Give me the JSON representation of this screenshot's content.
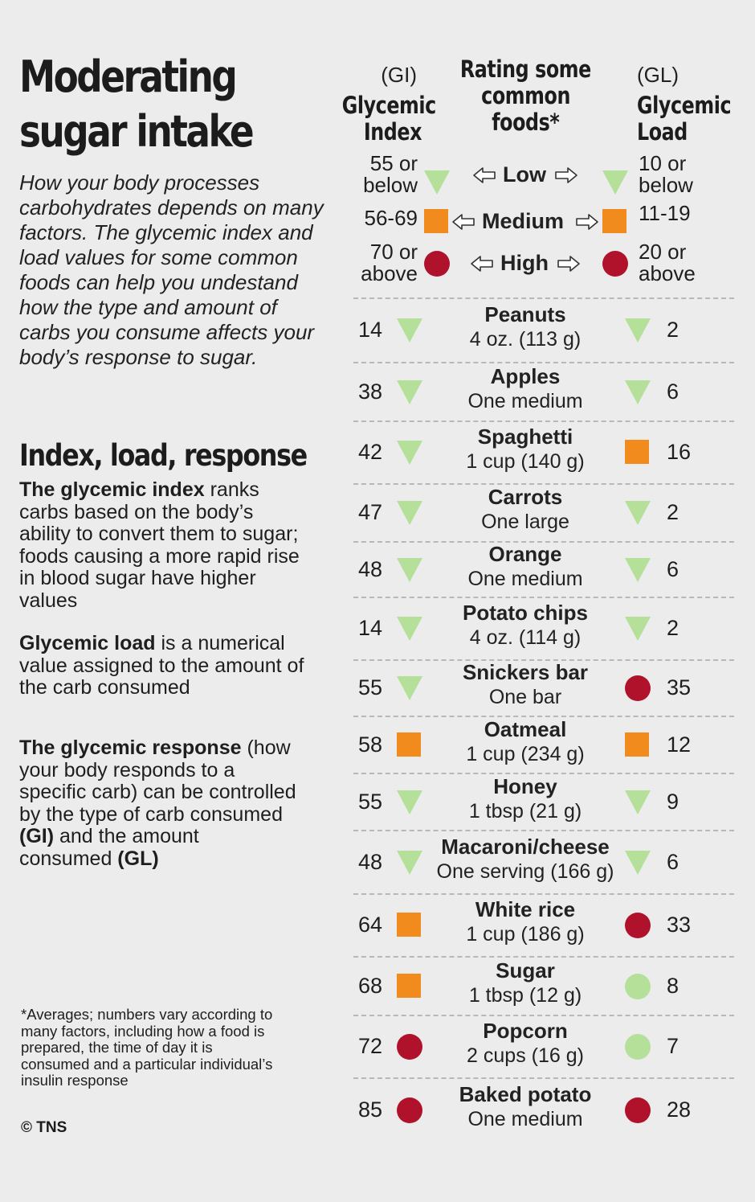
{
  "title_line1": "Moderating",
  "title_line2": "sugar intake",
  "intro": "How your body processes carbohydrates depends on many factors. The glycemic index and load values for some common foods can help you undestand how the type and amount of carbs you consume affects your body’s response to sugar.",
  "subhead": "Index, load, response",
  "definitions": {
    "gi_bold": "The glycemic index",
    "gi_text": " ranks carbs based on the body’s ability to convert them to sugar; foods causing a more rapid rise in blood sugar have higher values",
    "gl_bold": "Glycemic load",
    "gl_text": " is a numerical value assigned to the amount of the carb consumed",
    "gr_bold": "The glycemic response",
    "gr_text1": " (how your body responds to a specific carb) can be controlled by the type of carb consumed ",
    "gr_gi": "(GI)",
    "gr_text2": " and the amount consumed ",
    "gr_gl": "(GL)"
  },
  "footnote": "*Averages; numbers vary according to many factors, including how a food is prepared, the time of day it is consumed and a particular individual’s insulin response",
  "credit": "© TNS",
  "headers": {
    "gi_abbr": "(GI)",
    "gi_line1": "Glycemic",
    "gi_line2": "Index",
    "center_line1": "Rating some",
    "center_line2": "common",
    "center_line3": "foods*",
    "gl_abbr": "(GL)",
    "gl_line1": "Glycemic",
    "gl_line2": "Load"
  },
  "legend": [
    {
      "label": "Low",
      "gi_range": [
        "55 or",
        "below"
      ],
      "gl_range": [
        "10 or",
        "below"
      ],
      "marker": "triangle"
    },
    {
      "label": "Medium",
      "gi_range": [
        "56-69"
      ],
      "gl_range": [
        "11-19"
      ],
      "marker": "square"
    },
    {
      "label": "High",
      "gi_range": [
        "70 or",
        "above"
      ],
      "gl_range": [
        "20 or",
        "above"
      ],
      "marker": "circle"
    }
  ],
  "colors": {
    "low": "#b5e09a",
    "medium": "#f28b1e",
    "high": "#b0122b",
    "divider": "#b8b8b8"
  },
  "chart_data": {
    "type": "table",
    "columns": [
      "Glycemic Index",
      "Rating some common foods*",
      "Glycemic Load"
    ],
    "rows": [
      {
        "food": "Peanuts",
        "serving": "4 oz. (113 g)",
        "gi": 14,
        "gi_rating": "low",
        "gl": 2,
        "gl_rating": "low",
        "gl_marker": "triangle"
      },
      {
        "food": "Apples",
        "serving": "One medium",
        "gi": 38,
        "gi_rating": "low",
        "gl": 6,
        "gl_rating": "low",
        "gl_marker": "triangle"
      },
      {
        "food": "Spaghetti",
        "serving": "1 cup (140 g)",
        "gi": 42,
        "gi_rating": "low",
        "gl": 16,
        "gl_rating": "medium",
        "gl_marker": "square"
      },
      {
        "food": "Carrots",
        "serving": "One large",
        "gi": 47,
        "gi_rating": "low",
        "gl": 2,
        "gl_rating": "low",
        "gl_marker": "triangle"
      },
      {
        "food": "Orange",
        "serving": "One medium",
        "gi": 48,
        "gi_rating": "low",
        "gl": 6,
        "gl_rating": "low",
        "gl_marker": "triangle"
      },
      {
        "food": "Potato chips",
        "serving": "4 oz. (114 g)",
        "gi": 14,
        "gi_rating": "low",
        "gl": 2,
        "gl_rating": "low",
        "gl_marker": "triangle"
      },
      {
        "food": "Snickers bar",
        "serving": "One bar",
        "gi": 55,
        "gi_rating": "low",
        "gl": 35,
        "gl_rating": "high",
        "gl_marker": "circle"
      },
      {
        "food": "Oatmeal",
        "serving": "1 cup (234 g)",
        "gi": 58,
        "gi_rating": "medium",
        "gl": 12,
        "gl_rating": "medium",
        "gl_marker": "square"
      },
      {
        "food": "Honey",
        "serving": "1 tbsp (21 g)",
        "gi": 55,
        "gi_rating": "low",
        "gl": 9,
        "gl_rating": "low",
        "gl_marker": "triangle"
      },
      {
        "food": "Macaroni/cheese",
        "serving": "One serving (166 g)",
        "gi": 48,
        "gi_rating": "low",
        "gl": 6,
        "gl_rating": "low",
        "gl_marker": "triangle"
      },
      {
        "food": "White rice",
        "serving": "1 cup (186 g)",
        "gi": 64,
        "gi_rating": "medium",
        "gl": 33,
        "gl_rating": "high",
        "gl_marker": "circle"
      },
      {
        "food": "Sugar",
        "serving": "1 tbsp (12 g)",
        "gi": 68,
        "gi_rating": "medium",
        "gl": 8,
        "gl_rating": "low",
        "gl_marker": "light-circle"
      },
      {
        "food": "Popcorn",
        "serving": "2 cups (16 g)",
        "gi": 72,
        "gi_rating": "high",
        "gl": 7,
        "gl_rating": "low",
        "gl_marker": "light-circle"
      },
      {
        "food": "Baked potato",
        "serving": "One medium",
        "gi": 85,
        "gi_rating": "high",
        "gl": 28,
        "gl_rating": "high",
        "gl_marker": "circle"
      }
    ]
  }
}
